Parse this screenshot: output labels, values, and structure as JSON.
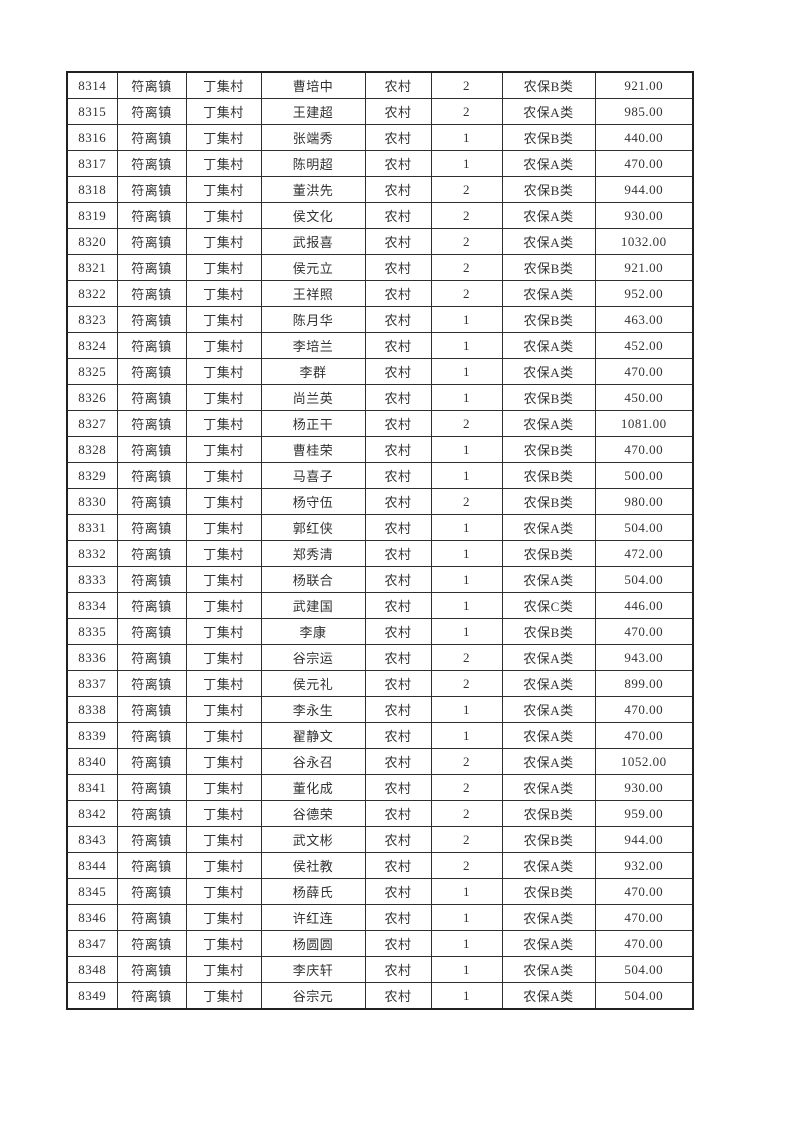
{
  "page": {
    "kind": "printed-roster-table",
    "background_color": "#ffffff",
    "border_color": "#212121",
    "grid_line_color": "#2f2f2f",
    "text_color": "#323232"
  },
  "table": {
    "fields": [
      "serial",
      "town",
      "village",
      "person_name",
      "residence_category",
      "person_count",
      "insurance_type",
      "amount"
    ],
    "rows": [
      [
        "8314",
        "符离镇",
        "丁集村",
        "曹培中",
        "农村",
        "2",
        "农保B类",
        "921.00"
      ],
      [
        "8315",
        "符离镇",
        "丁集村",
        "王建超",
        "农村",
        "2",
        "农保A类",
        "985.00"
      ],
      [
        "8316",
        "符离镇",
        "丁集村",
        "张端秀",
        "农村",
        "1",
        "农保B类",
        "440.00"
      ],
      [
        "8317",
        "符离镇",
        "丁集村",
        "陈明超",
        "农村",
        "1",
        "农保A类",
        "470.00"
      ],
      [
        "8318",
        "符离镇",
        "丁集村",
        "董洪先",
        "农村",
        "2",
        "农保B类",
        "944.00"
      ],
      [
        "8319",
        "符离镇",
        "丁集村",
        "侯文化",
        "农村",
        "2",
        "农保A类",
        "930.00"
      ],
      [
        "8320",
        "符离镇",
        "丁集村",
        "武报喜",
        "农村",
        "2",
        "农保A类",
        "1032.00"
      ],
      [
        "8321",
        "符离镇",
        "丁集村",
        "侯元立",
        "农村",
        "2",
        "农保B类",
        "921.00"
      ],
      [
        "8322",
        "符离镇",
        "丁集村",
        "王祥照",
        "农村",
        "2",
        "农保A类",
        "952.00"
      ],
      [
        "8323",
        "符离镇",
        "丁集村",
        "陈月华",
        "农村",
        "1",
        "农保B类",
        "463.00"
      ],
      [
        "8324",
        "符离镇",
        "丁集村",
        "李培兰",
        "农村",
        "1",
        "农保A类",
        "452.00"
      ],
      [
        "8325",
        "符离镇",
        "丁集村",
        "李群",
        "农村",
        "1",
        "农保A类",
        "470.00"
      ],
      [
        "8326",
        "符离镇",
        "丁集村",
        "尚兰英",
        "农村",
        "1",
        "农保B类",
        "450.00"
      ],
      [
        "8327",
        "符离镇",
        "丁集村",
        "杨正干",
        "农村",
        "2",
        "农保A类",
        "1081.00"
      ],
      [
        "8328",
        "符离镇",
        "丁集村",
        "曹桂荣",
        "农村",
        "1",
        "农保B类",
        "470.00"
      ],
      [
        "8329",
        "符离镇",
        "丁集村",
        "马喜子",
        "农村",
        "1",
        "农保B类",
        "500.00"
      ],
      [
        "8330",
        "符离镇",
        "丁集村",
        "杨守伍",
        "农村",
        "2",
        "农保B类",
        "980.00"
      ],
      [
        "8331",
        "符离镇",
        "丁集村",
        "郭红侠",
        "农村",
        "1",
        "农保A类",
        "504.00"
      ],
      [
        "8332",
        "符离镇",
        "丁集村",
        "郑秀清",
        "农村",
        "1",
        "农保B类",
        "472.00"
      ],
      [
        "8333",
        "符离镇",
        "丁集村",
        "杨联合",
        "农村",
        "1",
        "农保A类",
        "504.00"
      ],
      [
        "8334",
        "符离镇",
        "丁集村",
        "武建国",
        "农村",
        "1",
        "农保C类",
        "446.00"
      ],
      [
        "8335",
        "符离镇",
        "丁集村",
        "李康",
        "农村",
        "1",
        "农保B类",
        "470.00"
      ],
      [
        "8336",
        "符离镇",
        "丁集村",
        "谷宗运",
        "农村",
        "2",
        "农保A类",
        "943.00"
      ],
      [
        "8337",
        "符离镇",
        "丁集村",
        "侯元礼",
        "农村",
        "2",
        "农保A类",
        "899.00"
      ],
      [
        "8338",
        "符离镇",
        "丁集村",
        "李永生",
        "农村",
        "1",
        "农保A类",
        "470.00"
      ],
      [
        "8339",
        "符离镇",
        "丁集村",
        "翟静文",
        "农村",
        "1",
        "农保A类",
        "470.00"
      ],
      [
        "8340",
        "符离镇",
        "丁集村",
        "谷永召",
        "农村",
        "2",
        "农保A类",
        "1052.00"
      ],
      [
        "8341",
        "符离镇",
        "丁集村",
        "董化成",
        "农村",
        "2",
        "农保A类",
        "930.00"
      ],
      [
        "8342",
        "符离镇",
        "丁集村",
        "谷德荣",
        "农村",
        "2",
        "农保B类",
        "959.00"
      ],
      [
        "8343",
        "符离镇",
        "丁集村",
        "武文彬",
        "农村",
        "2",
        "农保B类",
        "944.00"
      ],
      [
        "8344",
        "符离镇",
        "丁集村",
        "侯社教",
        "农村",
        "2",
        "农保A类",
        "932.00"
      ],
      [
        "8345",
        "符离镇",
        "丁集村",
        "杨薛氏",
        "农村",
        "1",
        "农保B类",
        "470.00"
      ],
      [
        "8346",
        "符离镇",
        "丁集村",
        "许红连",
        "农村",
        "1",
        "农保A类",
        "470.00"
      ],
      [
        "8347",
        "符离镇",
        "丁集村",
        "杨圆圆",
        "农村",
        "1",
        "农保A类",
        "470.00"
      ],
      [
        "8348",
        "符离镇",
        "丁集村",
        "李庆轩",
        "农村",
        "1",
        "农保A类",
        "504.00"
      ],
      [
        "8349",
        "符离镇",
        "丁集村",
        "谷宗元",
        "农村",
        "1",
        "农保A类",
        "504.00"
      ]
    ]
  }
}
